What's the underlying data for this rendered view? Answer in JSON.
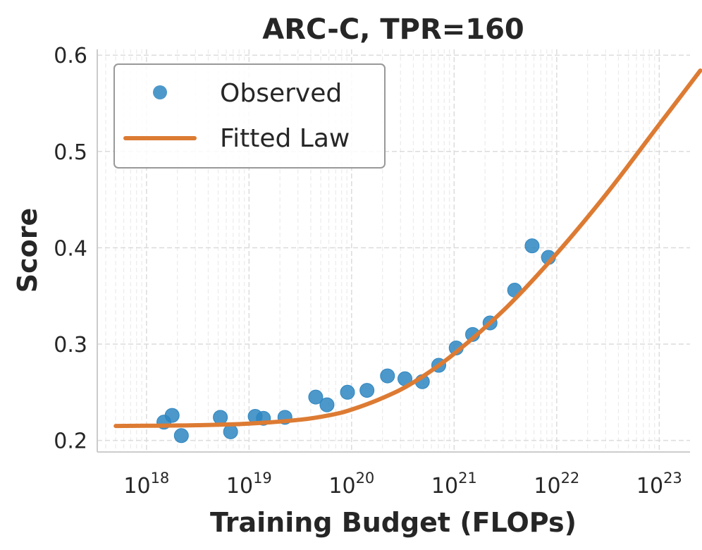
{
  "chart_data": {
    "type": "scatter",
    "title": "ARC-C, TPR=160",
    "xlabel": "Training Budget (FLOPs)",
    "ylabel": "Score",
    "xscale": "log",
    "xlim_log10": [
      17.52,
      23.3
    ],
    "ylim": [
      0.188,
      0.606
    ],
    "x_ticks": [
      {
        "base": "10",
        "exp": "18",
        "log10": 18
      },
      {
        "base": "10",
        "exp": "19",
        "log10": 19
      },
      {
        "base": "10",
        "exp": "20",
        "log10": 20
      },
      {
        "base": "10",
        "exp": "21",
        "log10": 21
      },
      {
        "base": "10",
        "exp": "22",
        "log10": 22
      },
      {
        "base": "10",
        "exp": "23",
        "log10": 23
      }
    ],
    "y_ticks": [
      {
        "label": "0.2",
        "value": 0.2
      },
      {
        "label": "0.3",
        "value": 0.3
      },
      {
        "label": "0.4",
        "value": 0.4
      },
      {
        "label": "0.5",
        "value": 0.5
      },
      {
        "label": "0.6",
        "value": 0.6
      }
    ],
    "grid": true,
    "legend_position": "top-left",
    "series": [
      {
        "name": "Observed",
        "kind": "scatter",
        "color": "#2e86c1",
        "points": [
          {
            "log10x": 18.17,
            "y": 0.219
          },
          {
            "log10x": 18.25,
            "y": 0.226
          },
          {
            "log10x": 18.34,
            "y": 0.205
          },
          {
            "log10x": 18.72,
            "y": 0.224
          },
          {
            "log10x": 18.82,
            "y": 0.209
          },
          {
            "log10x": 19.06,
            "y": 0.225
          },
          {
            "log10x": 19.14,
            "y": 0.223
          },
          {
            "log10x": 19.35,
            "y": 0.224
          },
          {
            "log10x": 19.65,
            "y": 0.245
          },
          {
            "log10x": 19.76,
            "y": 0.237
          },
          {
            "log10x": 19.96,
            "y": 0.25
          },
          {
            "log10x": 20.15,
            "y": 0.252
          },
          {
            "log10x": 20.35,
            "y": 0.267
          },
          {
            "log10x": 20.52,
            "y": 0.264
          },
          {
            "log10x": 20.69,
            "y": 0.261
          },
          {
            "log10x": 20.85,
            "y": 0.278
          },
          {
            "log10x": 21.02,
            "y": 0.296
          },
          {
            "log10x": 21.18,
            "y": 0.31
          },
          {
            "log10x": 21.35,
            "y": 0.322
          },
          {
            "log10x": 21.59,
            "y": 0.356
          },
          {
            "log10x": 21.76,
            "y": 0.402
          },
          {
            "log10x": 21.92,
            "y": 0.39
          }
        ]
      },
      {
        "name": "Fitted Law",
        "kind": "line",
        "color": "#dd7b33",
        "points": [
          {
            "log10x": 17.7,
            "y": 0.215
          },
          {
            "log10x": 18.0,
            "y": 0.2152
          },
          {
            "log10x": 18.5,
            "y": 0.2158
          },
          {
            "log10x": 19.0,
            "y": 0.2174
          },
          {
            "log10x": 19.5,
            "y": 0.2215
          },
          {
            "log10x": 19.8,
            "y": 0.2265
          },
          {
            "log10x": 20.0,
            "y": 0.232
          },
          {
            "log10x": 20.3,
            "y": 0.244
          },
          {
            "log10x": 20.6,
            "y": 0.26
          },
          {
            "log10x": 21.0,
            "y": 0.29
          },
          {
            "log10x": 21.5,
            "y": 0.337
          },
          {
            "log10x": 22.0,
            "y": 0.394
          },
          {
            "log10x": 22.5,
            "y": 0.458
          },
          {
            "log10x": 23.0,
            "y": 0.528
          },
          {
            "log10x": 23.4,
            "y": 0.584
          }
        ]
      }
    ]
  }
}
